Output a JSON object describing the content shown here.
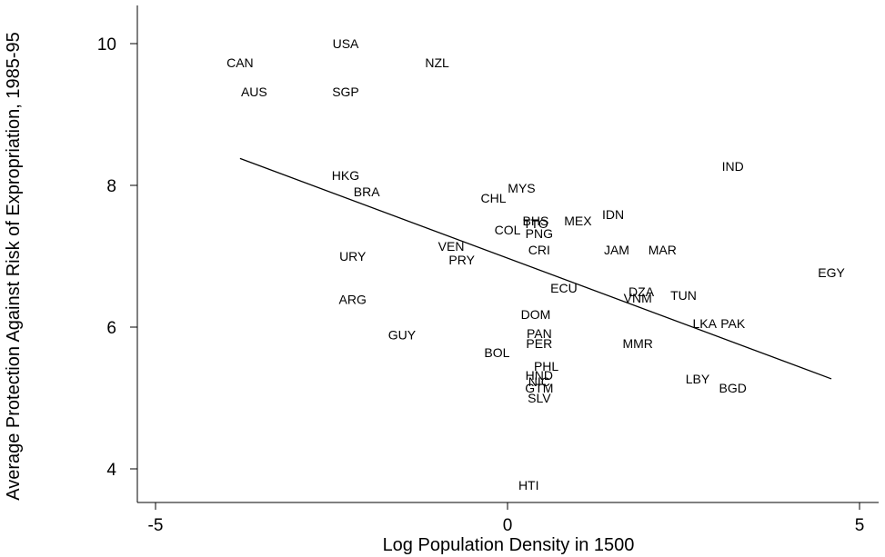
{
  "chart_data": {
    "type": "scatter",
    "title": "",
    "xlabel": "Log Population Density in 1500",
    "ylabel": "Average Protection Against Risk of Expropriation, 1985-95",
    "xlim": [
      -5.2,
      5.3
    ],
    "ylim": [
      3.5,
      10.5
    ],
    "xticks": [
      -5,
      0,
      5
    ],
    "yticks": [
      4,
      6,
      8,
      10
    ],
    "points": [
      {
        "label": "USA",
        "x": -2.3,
        "y": 10.0
      },
      {
        "label": "CAN",
        "x": -3.8,
        "y": 9.73
      },
      {
        "label": "NZL",
        "x": -1.0,
        "y": 9.73
      },
      {
        "label": "AUS",
        "x": -3.6,
        "y": 9.32
      },
      {
        "label": "SGP",
        "x": -2.3,
        "y": 9.32
      },
      {
        "label": "IND",
        "x": 3.2,
        "y": 8.27
      },
      {
        "label": "HKG",
        "x": -2.3,
        "y": 8.14
      },
      {
        "label": "BRA",
        "x": -2.0,
        "y": 7.91
      },
      {
        "label": "MYS",
        "x": 0.2,
        "y": 7.96
      },
      {
        "label": "CHL",
        "x": -0.2,
        "y": 7.82
      },
      {
        "label": "IDN",
        "x": 1.5,
        "y": 7.59
      },
      {
        "label": "BHS",
        "x": 0.4,
        "y": 7.5
      },
      {
        "label": "TTO",
        "x": 0.4,
        "y": 7.46
      },
      {
        "label": "MEX",
        "x": 1.0,
        "y": 7.5
      },
      {
        "label": "COL",
        "x": 0.0,
        "y": 7.37
      },
      {
        "label": "PNG",
        "x": 0.45,
        "y": 7.32
      },
      {
        "label": "VEN",
        "x": -0.8,
        "y": 7.14
      },
      {
        "label": "CRI",
        "x": 0.45,
        "y": 7.09
      },
      {
        "label": "JAM",
        "x": 1.55,
        "y": 7.09
      },
      {
        "label": "MAR",
        "x": 2.2,
        "y": 7.09
      },
      {
        "label": "URY",
        "x": -2.2,
        "y": 7.0
      },
      {
        "label": "PRY",
        "x": -0.65,
        "y": 6.95
      },
      {
        "label": "EGY",
        "x": 4.6,
        "y": 6.77
      },
      {
        "label": "ECU",
        "x": 0.8,
        "y": 6.55
      },
      {
        "label": "DZA",
        "x": 1.9,
        "y": 6.5
      },
      {
        "label": "VNM",
        "x": 1.85,
        "y": 6.41
      },
      {
        "label": "TUN",
        "x": 2.5,
        "y": 6.45
      },
      {
        "label": "ARG",
        "x": -2.2,
        "y": 6.39
      },
      {
        "label": "DOM",
        "x": 0.4,
        "y": 6.18
      },
      {
        "label": "LKA",
        "x": 2.8,
        "y": 6.05
      },
      {
        "label": "PAK",
        "x": 3.2,
        "y": 6.05
      },
      {
        "label": "GUY",
        "x": -1.5,
        "y": 5.89
      },
      {
        "label": "PAN",
        "x": 0.45,
        "y": 5.91
      },
      {
        "label": "PER",
        "x": 0.45,
        "y": 5.77
      },
      {
        "label": "MMR",
        "x": 1.85,
        "y": 5.77
      },
      {
        "label": "BOL",
        "x": -0.15,
        "y": 5.64
      },
      {
        "label": "PHL",
        "x": 0.55,
        "y": 5.45
      },
      {
        "label": "HND",
        "x": 0.45,
        "y": 5.32
      },
      {
        "label": "NIC",
        "x": 0.45,
        "y": 5.23
      },
      {
        "label": "LBY",
        "x": 2.7,
        "y": 5.27
      },
      {
        "label": "GTM",
        "x": 0.45,
        "y": 5.14
      },
      {
        "label": "BGD",
        "x": 3.2,
        "y": 5.14
      },
      {
        "label": "SLV",
        "x": 0.45,
        "y": 5.0
      },
      {
        "label": "HTI",
        "x": 0.3,
        "y": 3.77
      }
    ],
    "fit_line": {
      "x": [
        -3.8,
        4.6
      ],
      "y": [
        8.38,
        5.27
      ]
    }
  }
}
